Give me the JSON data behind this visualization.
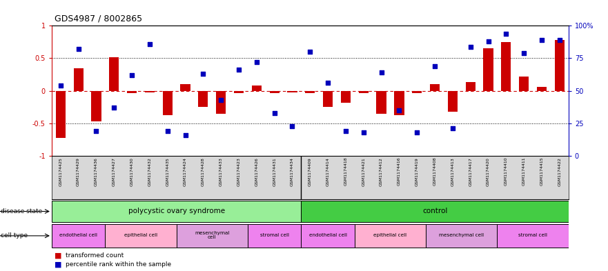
{
  "title": "GDS4987 / 8002865",
  "samples": [
    "GSM1174425",
    "GSM1174429",
    "GSM1174436",
    "GSM1174427",
    "GSM1174430",
    "GSM1174432",
    "GSM1174435",
    "GSM1174424",
    "GSM1174428",
    "GSM1174433",
    "GSM1174423",
    "GSM1174426",
    "GSM1174431",
    "GSM1174434",
    "GSM1174409",
    "GSM1174414",
    "GSM1174418",
    "GSM1174421",
    "GSM1174412",
    "GSM1174416",
    "GSM1174419",
    "GSM1174408",
    "GSM1174413",
    "GSM1174417",
    "GSM1174420",
    "GSM1174410",
    "GSM1174411",
    "GSM1174415",
    "GSM1174422"
  ],
  "bar_values": [
    -0.72,
    0.35,
    -0.47,
    0.52,
    -0.04,
    -0.03,
    -0.38,
    0.1,
    -0.25,
    -0.35,
    -0.04,
    0.08,
    -0.04,
    -0.03,
    -0.04,
    -0.25,
    -0.18,
    -0.04,
    -0.35,
    -0.38,
    -0.04,
    0.1,
    -0.32,
    0.13,
    0.65,
    0.75,
    0.22,
    0.06,
    0.78
  ],
  "scatter_values_pct": [
    54,
    82,
    19,
    37,
    62,
    86,
    19,
    16,
    63,
    43,
    66,
    72,
    33,
    23,
    80,
    56,
    19,
    18,
    64,
    35,
    18,
    69,
    21,
    84,
    88,
    94,
    79,
    89,
    89
  ],
  "bar_color": "#CC0000",
  "scatter_color": "#0000BB",
  "pcos_color": "#98EE98",
  "ctrl_color": "#44CC44",
  "cell_colors": [
    "#EE82EE",
    "#FFB0D0",
    "#DDA0DD",
    "#EE82EE"
  ],
  "cell_types_pcos": [
    {
      "label": "endothelial cell",
      "start": 0,
      "end": 3
    },
    {
      "label": "epithelial cell",
      "start": 3,
      "end": 7
    },
    {
      "label": "mesenchymal\ncell",
      "start": 7,
      "end": 11
    },
    {
      "label": "stromal cell",
      "start": 11,
      "end": 14
    }
  ],
  "cell_types_ctrl": [
    {
      "label": "endothelial cell",
      "start": 14,
      "end": 17
    },
    {
      "label": "epithelial cell",
      "start": 17,
      "end": 21
    },
    {
      "label": "mesenchymal cell",
      "start": 21,
      "end": 25
    },
    {
      "label": "stromal cell",
      "start": 25,
      "end": 29
    }
  ],
  "pcos_range": [
    0,
    14
  ],
  "ctrl_range": [
    14,
    29
  ],
  "xlabel_gray": "#CCCCCC"
}
